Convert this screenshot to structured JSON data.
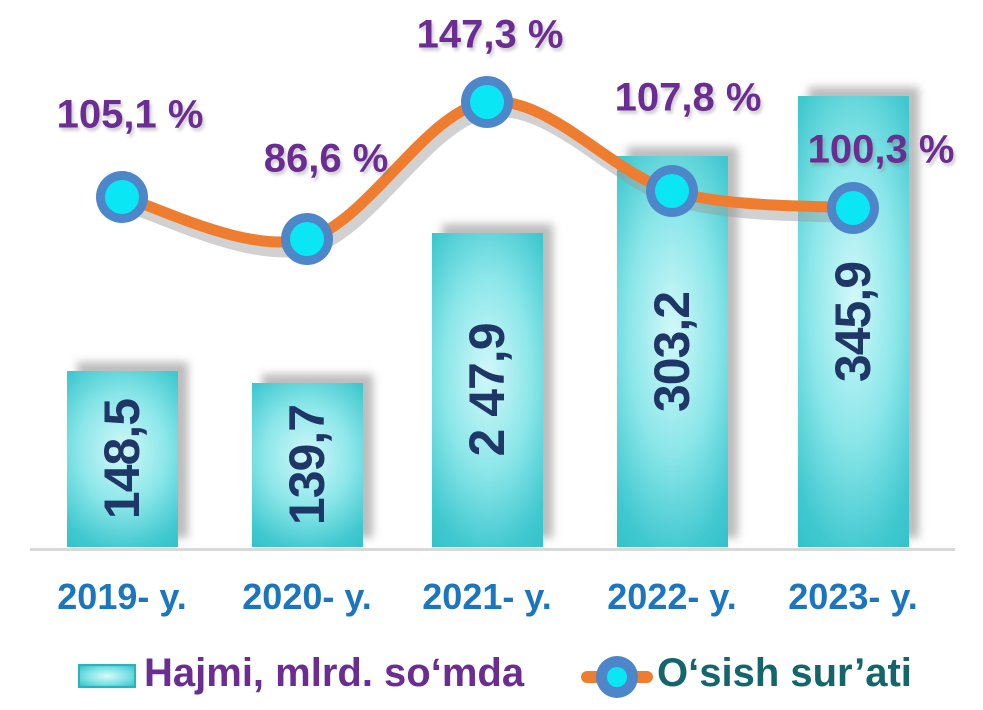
{
  "chart_data": {
    "type": "bar",
    "categories": [
      "2019- y.",
      "2020- y.",
      "2021- y.",
      "2022- y.",
      "2023- y."
    ],
    "series": [
      {
        "name": "Hajmi, mlrd. so‘mda",
        "type": "bar",
        "values": [
          148.5,
          139.7,
          247.9,
          303.2,
          345.9
        ],
        "data_labels": [
          "148,5",
          "139,7",
          "2 47,9",
          "303,2",
          "345,9"
        ],
        "color": "#35c4cb",
        "label_color": "#1e3766"
      },
      {
        "name": "O‘sish sur’ati",
        "type": "line",
        "values": [
          105.1,
          86.6,
          147.3,
          107.8,
          100.3
        ],
        "data_labels": [
          "105,1 %",
          "86,6 %",
          "147,3 %",
          "107,8 %",
          "100,3 %"
        ],
        "color": "#ee7d2f",
        "marker_ring": "#4e87c9",
        "marker_fill": "#0be6f4",
        "label_color": "#6b2d91"
      }
    ],
    "title": "",
    "xlabel": "",
    "ylabel": "",
    "grid": false,
    "y_axis_visible": false,
    "legend_position": "bottom"
  },
  "colors": {
    "background": "#ffffff",
    "axis_line": "#d9d9d9",
    "x_axis_label": "#1b76be",
    "bar_fill": "#35c4cb",
    "bar_value_text": "#1e3766",
    "line": "#ee7d2f",
    "marker_ring": "#4e87c9",
    "marker_fill": "#0be6f4",
    "percent_label": "#6b2d91",
    "legend_volume_text": "#6b2d91",
    "legend_growth_text": "#15666b"
  }
}
